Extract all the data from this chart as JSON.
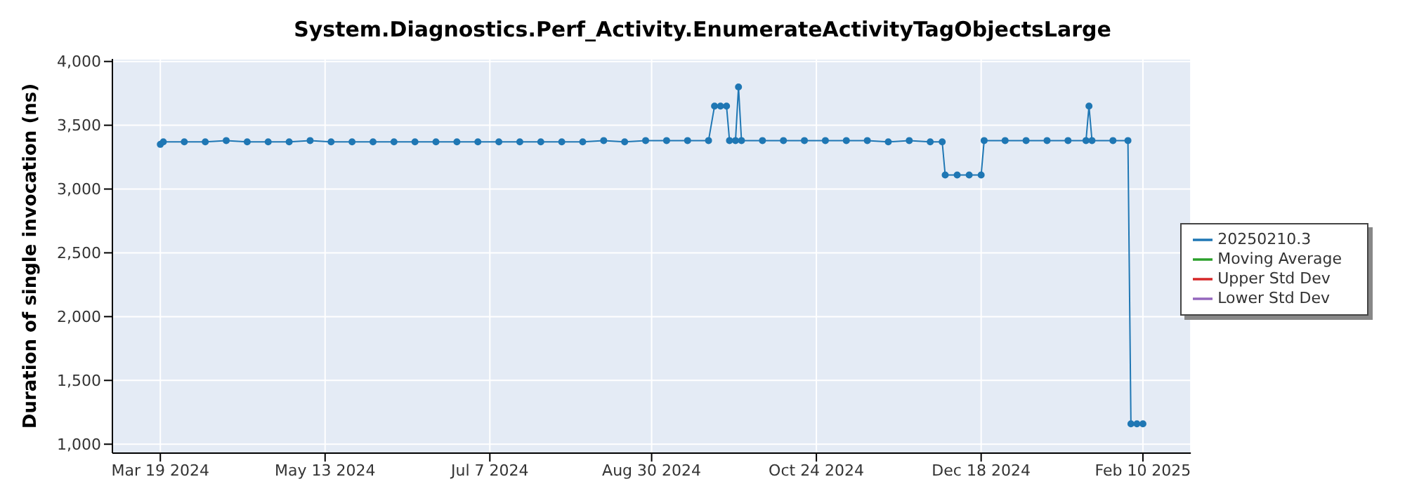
{
  "chart_data": {
    "type": "line",
    "title": "System.Diagnostics.Perf_Activity.EnumerateActivityTagObjectsLarge",
    "ylabel": "Duration of single invocation (ns)",
    "x": [
      "2024-03-19",
      "2024-03-20",
      "2024-03-27",
      "2024-04-03",
      "2024-04-10",
      "2024-04-17",
      "2024-04-24",
      "2024-05-01",
      "2024-05-08",
      "2024-05-15",
      "2024-05-22",
      "2024-05-29",
      "2024-06-05",
      "2024-06-12",
      "2024-06-19",
      "2024-06-26",
      "2024-07-03",
      "2024-07-10",
      "2024-07-17",
      "2024-07-24",
      "2024-07-31",
      "2024-08-07",
      "2024-08-14",
      "2024-08-21",
      "2024-08-28",
      "2024-09-04",
      "2024-09-11",
      "2024-09-18",
      "2024-09-20",
      "2024-09-22",
      "2024-09-24",
      "2024-09-25",
      "2024-09-27",
      "2024-09-28",
      "2024-09-29",
      "2024-10-06",
      "2024-10-13",
      "2024-10-20",
      "2024-10-27",
      "2024-11-03",
      "2024-11-10",
      "2024-11-17",
      "2024-11-24",
      "2024-12-01",
      "2024-12-05",
      "2024-12-06",
      "2024-12-10",
      "2024-12-14",
      "2024-12-18",
      "2024-12-19",
      "2024-12-26",
      "2025-01-02",
      "2025-01-09",
      "2025-01-16",
      "2025-01-22",
      "2025-01-23",
      "2025-01-24",
      "2025-01-31",
      "2025-02-05",
      "2025-02-06",
      "2025-02-08",
      "2025-02-10"
    ],
    "series": [
      {
        "name": "20250210.3",
        "color": "#1f77b4",
        "values": [
          3350,
          3370,
          3370,
          3370,
          3380,
          3370,
          3370,
          3370,
          3380,
          3370,
          3370,
          3370,
          3370,
          3370,
          3370,
          3370,
          3370,
          3370,
          3370,
          3370,
          3370,
          3370,
          3380,
          3370,
          3380,
          3380,
          3380,
          3380,
          3650,
          3650,
          3650,
          3380,
          3380,
          3800,
          3380,
          3380,
          3380,
          3380,
          3380,
          3380,
          3380,
          3370,
          3380,
          3370,
          3370,
          3110,
          3110,
          3110,
          3110,
          3380,
          3380,
          3380,
          3380,
          3380,
          3380,
          3650,
          3380,
          3380,
          3380,
          1160,
          1160,
          1160
        ]
      },
      {
        "name": "Moving Average",
        "color": "#2ca02c",
        "values": [
          null,
          null,
          null,
          null,
          null,
          null,
          null,
          null,
          null,
          null,
          null,
          null,
          null,
          null,
          null,
          null,
          null,
          null,
          null,
          null,
          null,
          null,
          null,
          null,
          null,
          null,
          null,
          null,
          null,
          null,
          null,
          null,
          null,
          null,
          null,
          null,
          null,
          null,
          null,
          null,
          null,
          null,
          null,
          null,
          null,
          null,
          null,
          null,
          null,
          null,
          null,
          null,
          null,
          null,
          null,
          null,
          null,
          null,
          null,
          null,
          null,
          null
        ]
      },
      {
        "name": "Upper Std Dev",
        "color": "#d62728",
        "values": [
          null,
          null,
          null,
          null,
          null,
          null,
          null,
          null,
          null,
          null,
          null,
          null,
          null,
          null,
          null,
          null,
          null,
          null,
          null,
          null,
          null,
          null,
          null,
          null,
          null,
          null,
          null,
          null,
          null,
          null,
          null,
          null,
          null,
          null,
          null,
          null,
          null,
          null,
          null,
          null,
          null,
          null,
          null,
          null,
          null,
          null,
          null,
          null,
          null,
          null,
          null,
          null,
          null,
          null,
          null,
          null,
          null,
          null,
          null,
          null,
          null,
          null
        ]
      },
      {
        "name": "Lower Std Dev",
        "color": "#9467bd",
        "values": [
          null,
          null,
          null,
          null,
          null,
          null,
          null,
          null,
          null,
          null,
          null,
          null,
          null,
          null,
          null,
          null,
          null,
          null,
          null,
          null,
          null,
          null,
          null,
          null,
          null,
          null,
          null,
          null,
          null,
          null,
          null,
          null,
          null,
          null,
          null,
          null,
          null,
          null,
          null,
          null,
          null,
          null,
          null,
          null,
          null,
          null,
          null,
          null,
          null,
          null,
          null,
          null,
          null,
          null,
          null,
          null,
          null,
          null,
          null,
          null,
          null,
          null
        ]
      }
    ],
    "xlim": [
      "2024-03-03",
      "2025-02-26"
    ],
    "xticks": [
      {
        "value": "2024-03-19",
        "label": "Mar 19 2024"
      },
      {
        "value": "2024-05-13",
        "label": "May 13 2024"
      },
      {
        "value": "2024-07-07",
        "label": "Jul 7 2024"
      },
      {
        "value": "2024-08-30",
        "label": "Aug 30 2024"
      },
      {
        "value": "2024-10-24",
        "label": "Oct 24 2024"
      },
      {
        "value": "2024-12-18",
        "label": "Dec 18 2024"
      },
      {
        "value": "2025-02-10",
        "label": "Feb 10 2025"
      }
    ],
    "ylim": [
      930,
      4020
    ],
    "yticks": [
      {
        "value": 1000,
        "label": "1,000"
      },
      {
        "value": 1500,
        "label": "1,500"
      },
      {
        "value": 2000,
        "label": "2,000"
      },
      {
        "value": 2500,
        "label": "2,500"
      },
      {
        "value": 3000,
        "label": "3,000"
      },
      {
        "value": 3500,
        "label": "3,500"
      },
      {
        "value": 4000,
        "label": "4,000"
      }
    ],
    "grid": true,
    "legend": "right",
    "marker": "circle",
    "line_style": "solid"
  }
}
